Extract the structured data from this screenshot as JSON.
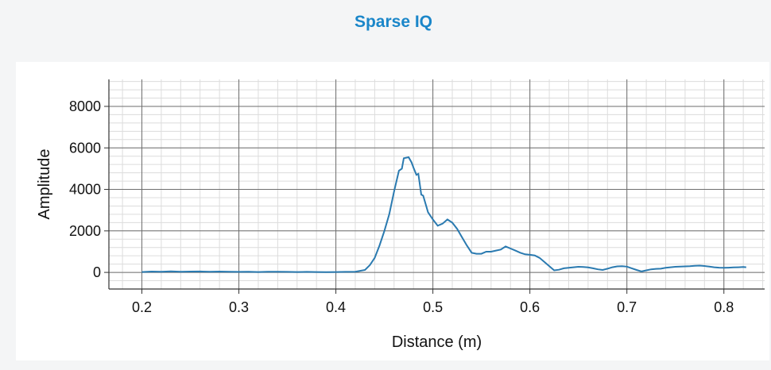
{
  "header": {
    "title": "Sparse IQ"
  },
  "chart_data": {
    "type": "line",
    "title": "Sparse IQ",
    "xlabel": "Distance (m)",
    "ylabel": "Amplitude",
    "xlim": [
      0.166,
      0.842
    ],
    "ylim": [
      -800,
      9300
    ],
    "grid": true,
    "x_ticks": [
      0.2,
      0.3,
      0.4,
      0.5,
      0.6,
      0.7,
      0.8
    ],
    "x_tick_labels": [
      "0.2",
      "0.3",
      "0.4",
      "0.5",
      "0.6",
      "0.7",
      "0.8"
    ],
    "y_ticks": [
      0,
      2000,
      4000,
      6000,
      8000
    ],
    "y_tick_labels": [
      "0",
      "2000",
      "4000",
      "6000",
      "8000"
    ],
    "line_color": "#2a7ab0",
    "series": [
      {
        "x": [
          0.2,
          0.21,
          0.22,
          0.23,
          0.24,
          0.25,
          0.26,
          0.27,
          0.28,
          0.29,
          0.3,
          0.31,
          0.32,
          0.33,
          0.34,
          0.35,
          0.36,
          0.37,
          0.38,
          0.39,
          0.4,
          0.41,
          0.42,
          0.43,
          0.435,
          0.44,
          0.445,
          0.45,
          0.455,
          0.46,
          0.465,
          0.468,
          0.47,
          0.475,
          0.478,
          0.48,
          0.483,
          0.485,
          0.488,
          0.49,
          0.495,
          0.5,
          0.505,
          0.51,
          0.515,
          0.52,
          0.525,
          0.53,
          0.535,
          0.54,
          0.545,
          0.55,
          0.555,
          0.56,
          0.565,
          0.57,
          0.575,
          0.58,
          0.585,
          0.59,
          0.595,
          0.6,
          0.605,
          0.61,
          0.615,
          0.62,
          0.625,
          0.63,
          0.635,
          0.64,
          0.645,
          0.65,
          0.655,
          0.66,
          0.665,
          0.67,
          0.675,
          0.68,
          0.685,
          0.69,
          0.695,
          0.7,
          0.705,
          0.71,
          0.715,
          0.72,
          0.725,
          0.73,
          0.735,
          0.74,
          0.745,
          0.75,
          0.755,
          0.76,
          0.765,
          0.77,
          0.775,
          0.78,
          0.785,
          0.79,
          0.795,
          0.8,
          0.805,
          0.81,
          0.815,
          0.82,
          0.823
        ],
        "values": [
          20,
          40,
          30,
          50,
          35,
          40,
          45,
          35,
          40,
          30,
          25,
          30,
          20,
          35,
          30,
          25,
          20,
          25,
          20,
          15,
          20,
          25,
          35,
          120,
          350,
          700,
          1300,
          2000,
          2800,
          3900,
          4900,
          5000,
          5500,
          5550,
          5300,
          5050,
          4700,
          4750,
          3750,
          3700,
          2900,
          2550,
          2250,
          2350,
          2550,
          2400,
          2100,
          1700,
          1300,
          950,
          900,
          900,
          1000,
          1000,
          1050,
          1100,
          1250,
          1150,
          1050,
          950,
          870,
          850,
          820,
          700,
          500,
          300,
          100,
          130,
          200,
          220,
          250,
          270,
          260,
          240,
          200,
          150,
          120,
          180,
          250,
          290,
          300,
          280,
          200,
          120,
          50,
          100,
          150,
          170,
          180,
          220,
          250,
          270,
          280,
          290,
          300,
          320,
          330,
          310,
          280,
          250,
          230,
          220,
          230,
          240,
          250,
          260,
          250
        ]
      }
    ]
  }
}
